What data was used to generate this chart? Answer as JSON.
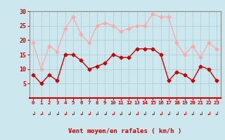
{
  "hours": [
    0,
    1,
    2,
    3,
    4,
    5,
    6,
    7,
    8,
    9,
    10,
    11,
    12,
    13,
    14,
    15,
    16,
    17,
    18,
    19,
    20,
    21,
    22,
    23
  ],
  "vent_moyen": [
    8,
    5,
    8,
    6,
    15,
    15,
    13,
    10,
    11,
    12,
    15,
    14,
    14,
    17,
    17,
    17,
    15,
    6,
    9,
    8,
    6,
    11,
    10,
    6
  ],
  "rafales": [
    19,
    10,
    18,
    16,
    24,
    28,
    22,
    19,
    25,
    26,
    25,
    23,
    24,
    25,
    25,
    29,
    28,
    28,
    19,
    15,
    18,
    14,
    19,
    17
  ],
  "moyen_color": "#cc0000",
  "rafales_color": "#ffaaaa",
  "bg_color": "#cce8ee",
  "grid_color": "#aacccc",
  "xlabel": "Vent moyen/en rafales ( km/h )",
  "xlabel_color": "#cc0000",
  "tick_color": "#cc0000",
  "spine_color": "#888888",
  "ylim": [
    0,
    30
  ],
  "yticks": [
    5,
    10,
    15,
    20,
    25,
    30
  ],
  "marker": "D",
  "marker_size": 2.5,
  "line_width": 1.0
}
